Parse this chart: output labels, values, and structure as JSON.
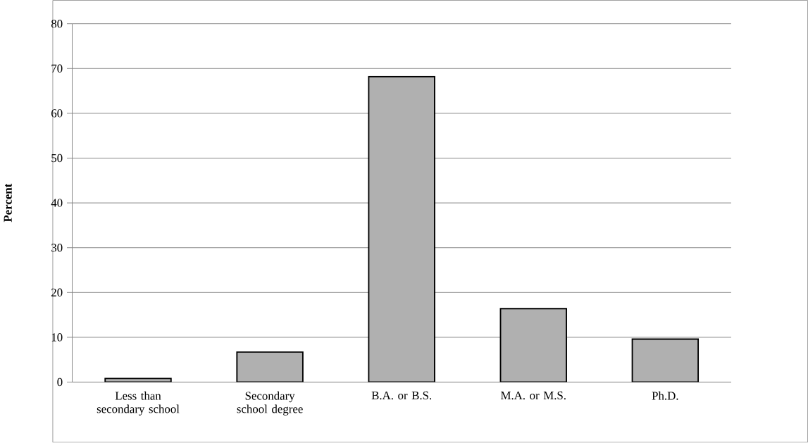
{
  "chart_data": {
    "type": "bar",
    "categories": [
      "Less than secondary school",
      "Secondary school degree",
      "B.A. or B.S.",
      "M.A. or M.S.",
      "Ph.D."
    ],
    "values": [
      0.8,
      6.7,
      68.2,
      16.4,
      9.6
    ],
    "color": "#b0b0b0",
    "ylabel": "Percent",
    "ylim": [
      0,
      80
    ],
    "yticks": [
      0,
      10,
      20,
      30,
      40,
      50,
      60,
      70,
      80
    ],
    "grid": "y"
  }
}
